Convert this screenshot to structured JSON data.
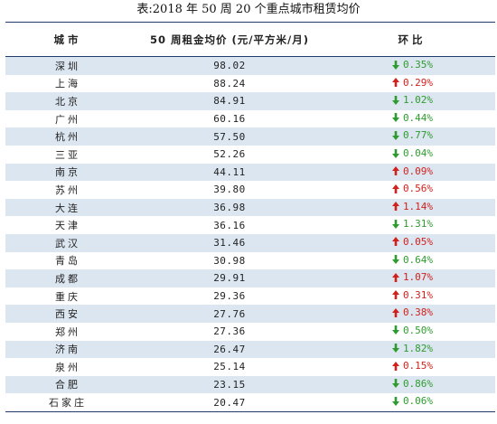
{
  "title": "表:2018 年 50 周 20 个重点城市租赁均价",
  "headers": {
    "city": "城市",
    "price": "50 周租金均价 (元/平方米/月)",
    "change": "环比"
  },
  "colors": {
    "up": "#d0211c",
    "down": "#2e9b2e",
    "stripe": "#dce6f1",
    "rule": "#1f3a6b"
  },
  "rows": [
    {
      "city": "深圳",
      "price": "98.02",
      "change": "0.35%",
      "dir": "down"
    },
    {
      "city": "上海",
      "price": "88.24",
      "change": "0.29%",
      "dir": "up"
    },
    {
      "city": "北京",
      "price": "84.91",
      "change": "1.02%",
      "dir": "down"
    },
    {
      "city": "广州",
      "price": "60.16",
      "change": "0.44%",
      "dir": "down"
    },
    {
      "city": "杭州",
      "price": "57.50",
      "change": "0.77%",
      "dir": "down"
    },
    {
      "city": "三亚",
      "price": "52.26",
      "change": "0.04%",
      "dir": "down"
    },
    {
      "city": "南京",
      "price": "44.11",
      "change": "0.09%",
      "dir": "up"
    },
    {
      "city": "苏州",
      "price": "39.80",
      "change": "0.56%",
      "dir": "up"
    },
    {
      "city": "大连",
      "price": "36.98",
      "change": "1.14%",
      "dir": "up"
    },
    {
      "city": "天津",
      "price": "36.16",
      "change": "1.31%",
      "dir": "down"
    },
    {
      "city": "武汉",
      "price": "31.46",
      "change": "0.05%",
      "dir": "up"
    },
    {
      "city": "青岛",
      "price": "30.98",
      "change": "0.64%",
      "dir": "down"
    },
    {
      "city": "成都",
      "price": "29.91",
      "change": "1.07%",
      "dir": "up"
    },
    {
      "city": "重庆",
      "price": "29.36",
      "change": "0.31%",
      "dir": "up"
    },
    {
      "city": "西安",
      "price": "27.76",
      "change": "0.38%",
      "dir": "up"
    },
    {
      "city": "郑州",
      "price": "27.36",
      "change": "0.50%",
      "dir": "down"
    },
    {
      "city": "济南",
      "price": "26.47",
      "change": "1.82%",
      "dir": "down"
    },
    {
      "city": "泉州",
      "price": "25.14",
      "change": "0.15%",
      "dir": "up"
    },
    {
      "city": "合肥",
      "price": "23.15",
      "change": "0.86%",
      "dir": "down"
    },
    {
      "city": "石家庄",
      "price": "20.47",
      "change": "0.06%",
      "dir": "down"
    }
  ]
}
